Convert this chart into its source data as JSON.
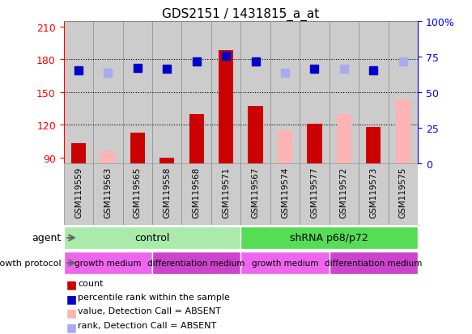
{
  "title": "GDS2151 / 1431815_a_at",
  "samples": [
    "GSM119559",
    "GSM119563",
    "GSM119565",
    "GSM119558",
    "GSM119568",
    "GSM119571",
    "GSM119567",
    "GSM119574",
    "GSM119577",
    "GSM119572",
    "GSM119573",
    "GSM119575"
  ],
  "count_values": [
    103,
    null,
    113,
    90,
    130,
    188,
    137,
    null,
    121,
    null,
    118,
    null
  ],
  "count_absent_values": [
    null,
    96,
    null,
    null,
    null,
    null,
    null,
    115,
    null,
    130,
    null,
    143
  ],
  "rank_present": [
    170,
    null,
    172,
    171,
    178,
    183,
    178,
    null,
    171,
    null,
    170,
    null
  ],
  "rank_absent": [
    null,
    168,
    null,
    null,
    null,
    null,
    null,
    168,
    null,
    171,
    null,
    178
  ],
  "ylim_left": [
    85,
    215
  ],
  "ylim_right": [
    0,
    100
  ],
  "yticks_left": [
    90,
    120,
    150,
    180,
    210
  ],
  "yticks_right": [
    0,
    25,
    50,
    75,
    100
  ],
  "bar_color_present": "#cc0000",
  "bar_color_absent": "#ffb3b3",
  "rank_color_present": "#0000cc",
  "rank_color_absent": "#aaaaee",
  "dotted_lines": [
    120,
    150,
    180
  ],
  "agent_groups": [
    {
      "label": "control",
      "start": 0,
      "end": 6,
      "color": "#aaeaaa"
    },
    {
      "label": "shRNA p68/p72",
      "start": 6,
      "end": 12,
      "color": "#55dd55"
    }
  ],
  "growth_groups": [
    {
      "label": "growth medium",
      "start": 0,
      "end": 3,
      "color": "#ee66ee"
    },
    {
      "label": "differentiation medium",
      "start": 3,
      "end": 6,
      "color": "#cc44cc"
    },
    {
      "label": "growth medium",
      "start": 6,
      "end": 9,
      "color": "#ee66ee"
    },
    {
      "label": "differentiation medium",
      "start": 9,
      "end": 12,
      "color": "#cc44cc"
    }
  ],
  "legend_items": [
    {
      "label": "count",
      "color": "#cc0000"
    },
    {
      "label": "percentile rank within the sample",
      "color": "#0000cc"
    },
    {
      "label": "value, Detection Call = ABSENT",
      "color": "#ffb3b3"
    },
    {
      "label": "rank, Detection Call = ABSENT",
      "color": "#aaaaee"
    }
  ],
  "bar_width": 0.5,
  "rank_marker_size": 7,
  "col_bg_color": "#cccccc",
  "col_border_color": "#888888"
}
